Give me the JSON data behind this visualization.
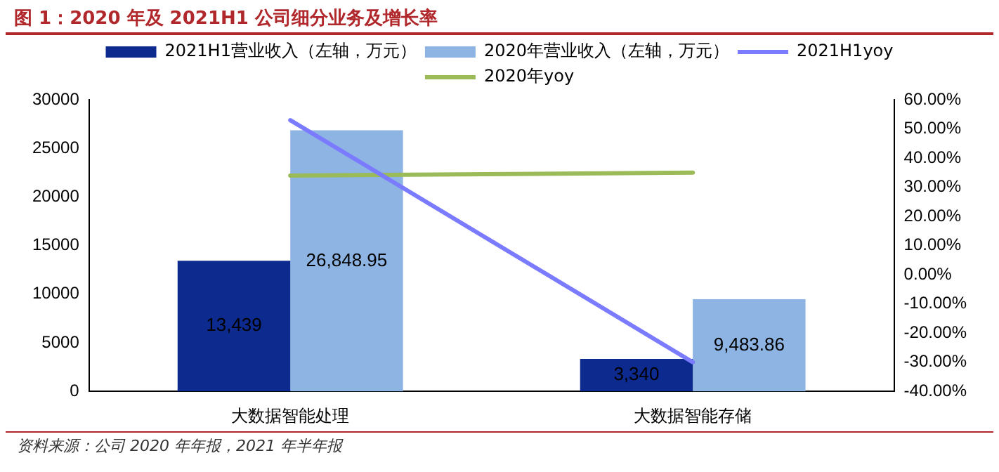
{
  "chart_data": {
    "type": "bar",
    "title": "图 1：2020 年及 2021H1 公司细分业务及增长率",
    "categories": [
      "大数据智能处理",
      "大数据智能存储"
    ],
    "series": [
      {
        "name": "2021H1营业收入（左轴，万元）",
        "color": "#0d2a8f",
        "values": [
          13439,
          3340
        ],
        "value_labels": [
          "13,439",
          "3,340"
        ]
      },
      {
        "name": "2020年营业收入（左轴，万元）",
        "color": "#8db4e2",
        "values": [
          26848.95,
          9483.86
        ],
        "value_labels": [
          "26,848.95",
          "9,483.86"
        ]
      },
      {
        "name": "2021H1yoy",
        "type": "line",
        "axis": "y2",
        "color": "#7b7bff",
        "values": [
          53,
          -30
        ]
      },
      {
        "name": "2020年yoy",
        "type": "line",
        "axis": "y2",
        "color": "#9bbb59",
        "values": [
          34,
          35
        ]
      }
    ],
    "ylim": [
      0,
      30000
    ],
    "yticks": [
      0,
      5000,
      10000,
      15000,
      20000,
      25000,
      30000
    ],
    "y2lim": [
      -40,
      60
    ],
    "y2ticks": [
      {
        "value": -40,
        "label": "-40.00%"
      },
      {
        "value": -30,
        "label": "-30.00%"
      },
      {
        "value": -20,
        "label": "-20.00%"
      },
      {
        "value": -10,
        "label": "-10.00%"
      },
      {
        "value": 0,
        "label": "0.00%"
      },
      {
        "value": 10,
        "label": "10.00%"
      },
      {
        "value": 20,
        "label": "20.00%"
      },
      {
        "value": 30,
        "label": "30.00%"
      },
      {
        "value": 40,
        "label": "40.00%"
      },
      {
        "value": 50,
        "label": "50.00%"
      },
      {
        "value": 60,
        "label": "60.00%"
      }
    ],
    "grid": false,
    "legend": "top",
    "marker": "none",
    "annotations": [
      "资料来源：公司 2020 年年报，2021 年半年报"
    ]
  }
}
